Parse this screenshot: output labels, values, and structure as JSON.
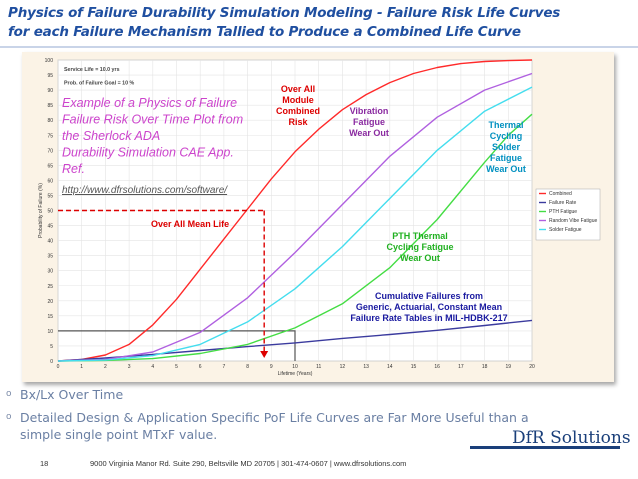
{
  "slide": {
    "title_line1": "Physics of Failure Durability Simulation Modeling - Failure Risk Life Curves",
    "title_line2": "for each  Failure Mechanism Tallied to Produce a Combined Life Curve",
    "bullets": [
      "Bx/Lx Over Time",
      "Detailed Design & Application Specific PoF Life Curves are Far More Useful than a simple single point MTxF value."
    ],
    "logo": "DfR Solutions",
    "page_number": "18",
    "footer": "9000 Virginia Manor Rd. Suite 290, Beltsville MD 20705 | 301-474-0607 | www.dfrsolutions.com"
  },
  "colors": {
    "title": "#1f4fa0",
    "combined": "#ff2a2a",
    "failure_rate": "#3b3b9e",
    "pth_fatigue": "#44dd44",
    "random_vibe": "#b060e0",
    "solder": "#44ddee",
    "annotation_red": "#dd0000",
    "annotation_magenta": "#cc44cc",
    "annotation_blue": "#1a1aa0"
  },
  "chart_data": {
    "type": "line",
    "xlabel": "Lifetime (Years)",
    "ylabel": "Probability of Failure (%)",
    "xlim": [
      0,
      20
    ],
    "ylim": [
      0,
      100
    ],
    "x_ticks": [
      0,
      1,
      2,
      3,
      4,
      5,
      6,
      7,
      8,
      9,
      10,
      11,
      12,
      13,
      14,
      15,
      16,
      17,
      18,
      19,
      20
    ],
    "y_ticks": [
      0,
      5,
      10,
      15,
      20,
      25,
      30,
      35,
      40,
      45,
      50,
      55,
      60,
      65,
      70,
      75,
      80,
      85,
      90,
      95,
      100
    ],
    "grid": true,
    "legend_position": "right",
    "inner_labels": [
      "Service Life = 10.0 yrs",
      "Prob. of Failure Goal = 10 %"
    ],
    "series": [
      {
        "name": "Combined",
        "x": [
          0,
          1,
          2,
          3,
          4,
          5,
          6,
          7,
          8,
          9,
          10,
          11,
          12,
          13,
          14,
          15,
          16,
          17,
          18,
          19,
          20
        ],
        "values": [
          0,
          0.5,
          2,
          5.5,
          12,
          20.5,
          30.5,
          40.5,
          50.5,
          60.5,
          69.5,
          77,
          83.5,
          88.5,
          92.5,
          95.5,
          97.5,
          98.8,
          99.5,
          99.8,
          100
        ]
      },
      {
        "name": "Failure Rate",
        "x": [
          0,
          2,
          4,
          6,
          8,
          10,
          12,
          14,
          16,
          18,
          20
        ],
        "values": [
          0,
          1,
          2.2,
          3.5,
          4.8,
          6,
          7.5,
          8.8,
          10.2,
          11.8,
          13.5
        ]
      },
      {
        "name": "PTH Fatigue",
        "x": [
          0,
          2,
          4,
          6,
          8,
          10,
          12,
          14,
          16,
          18,
          19,
          20
        ],
        "values": [
          0,
          0.2,
          0.8,
          2.5,
          5.5,
          11,
          19,
          31,
          47,
          66,
          75,
          82
        ]
      },
      {
        "name": "Random Vibe Fatigue",
        "x": [
          0,
          2,
          4,
          6,
          8,
          10,
          12,
          14,
          16,
          18,
          20
        ],
        "values": [
          0,
          0.5,
          3,
          9.5,
          21,
          36,
          52,
          68,
          81,
          90,
          95.5
        ]
      },
      {
        "name": "Solder Fatigue",
        "x": [
          0,
          2,
          4,
          6,
          8,
          10,
          12,
          14,
          16,
          18,
          20
        ],
        "values": [
          0,
          0.3,
          1.8,
          5.5,
          13,
          24,
          38,
          54,
          70,
          83,
          91
        ]
      }
    ],
    "reference_lines": {
      "mean_life": {
        "x": 8.7,
        "y": 50
      },
      "service_life": {
        "x": 10,
        "y": 10
      }
    },
    "annotations": {
      "example_note": [
        "Example of a Physics of Failure",
        "Failure Risk Over Time Plot  from",
        "the Sherlock ADA",
        "Durability Simulation CAE App.",
        "Ref."
      ],
      "example_link": "http://www.dfrsolutions.com/software/",
      "over_all": [
        "Over All",
        "Module",
        "Combined",
        "Risk"
      ],
      "vibration": [
        "Vibration",
        "Fatigue",
        "Wear Out"
      ],
      "thermal": [
        "Thermal",
        "Cycling",
        "Solder",
        "Fatigue",
        "Wear Out"
      ],
      "mean_life": "Over All Mean Life",
      "pth": [
        "PTH  Thermal",
        "Cycling Fatigue",
        "Wear Out"
      ],
      "cumulative": [
        "Cumulative Failures from",
        "Generic, Actuarial, Constant Mean",
        "Failure Rate Tables in MIL-HDBK-217"
      ]
    }
  }
}
